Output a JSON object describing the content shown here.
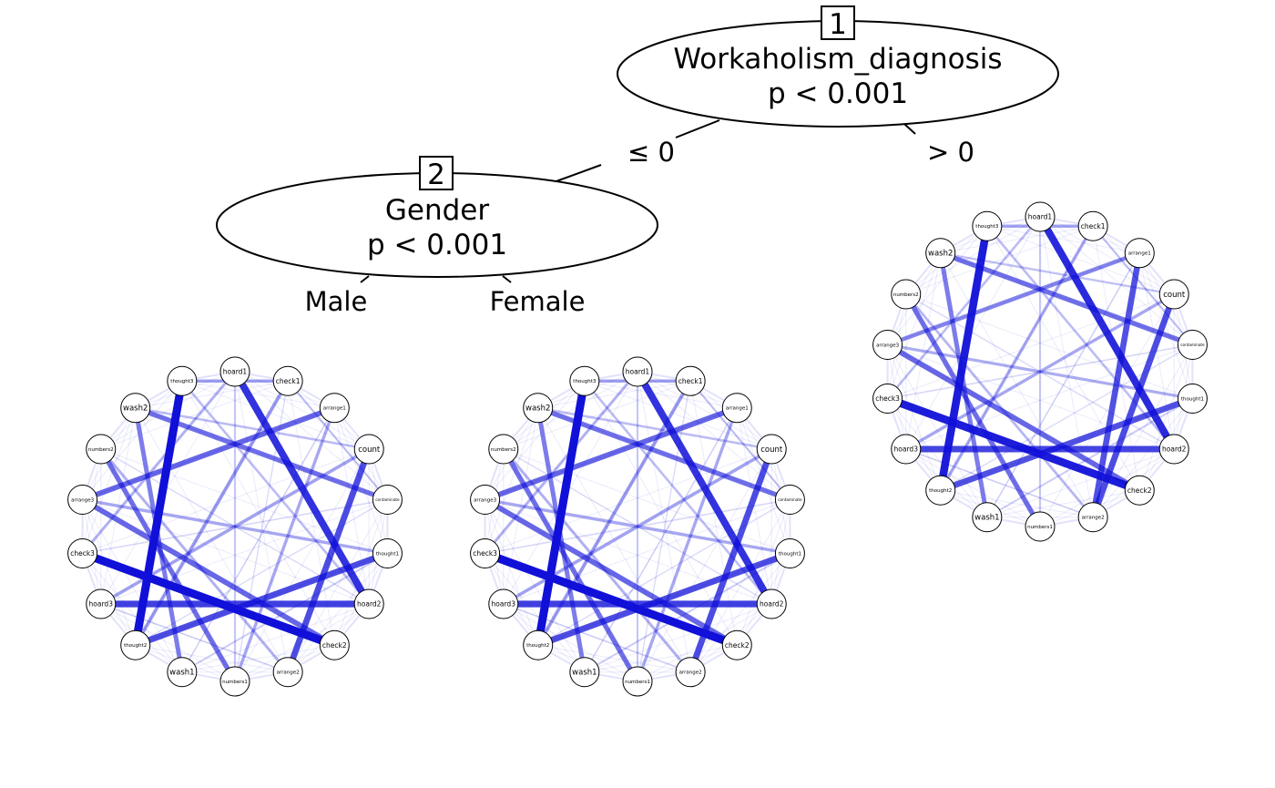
{
  "tree": {
    "nodes": [
      {
        "id": "1",
        "variable": "Workaholism_diagnosis",
        "pvalue": "p < 0.001"
      },
      {
        "id": "2",
        "variable": "Gender",
        "pvalue": "p < 0.001"
      }
    ],
    "edge_labels": {
      "root_left": "≤ 0",
      "root_right": "> 0",
      "gender_left": "Male",
      "gender_right": "Female"
    },
    "line_color": "#000000"
  },
  "networks": {
    "edge_color": "#1010d8",
    "node_fill": "#ffffff",
    "node_order": [
      "hoard1",
      "check1",
      "arrange1",
      "count",
      "contaminate",
      "thought1",
      "hoard2",
      "check2",
      "arrange2",
      "numbers1",
      "wash1",
      "thought2",
      "hoard3",
      "check3",
      "arrange3",
      "numbers2",
      "wash2",
      "thought3"
    ],
    "panels": [
      {
        "name": "Male",
        "edges": [
          [
            "thought3",
            "thought2",
            1.0
          ],
          [
            "check3",
            "check2",
            1.0
          ],
          [
            "hoard1",
            "hoard2",
            0.85
          ],
          [
            "hoard3",
            "hoard2",
            0.78
          ],
          [
            "thought1",
            "thought2",
            0.72
          ],
          [
            "count",
            "arrange2",
            0.72
          ],
          [
            "arrange3",
            "arrange1",
            0.6
          ],
          [
            "wash2",
            "contaminate",
            0.55
          ],
          [
            "numbers2",
            "numbers1",
            0.55
          ],
          [
            "arrange3",
            "check2",
            0.6
          ],
          [
            "wash2",
            "wash1",
            0.5
          ],
          [
            "check1",
            "thought2",
            0.35
          ],
          [
            "thought3",
            "check1",
            0.32
          ],
          [
            "arrange1",
            "numbers1",
            0.3
          ],
          [
            "hoard3",
            "count",
            0.32
          ],
          [
            "arrange3",
            "thought1",
            0.3
          ],
          [
            "check3",
            "hoard1",
            0.25
          ],
          [
            "numbers2",
            "arrange2",
            0.25
          ],
          [
            "wash2",
            "count",
            0.2
          ],
          [
            "thought3",
            "hoard2",
            0.2
          ],
          [
            "hoard1",
            "numbers1",
            0.15
          ],
          [
            "check1",
            "contaminate",
            0.15
          ],
          [
            "wash1",
            "thought1",
            0.12
          ],
          [
            "check3",
            "contaminate",
            0.08
          ],
          [
            "arrange2",
            "hoard3",
            0.08
          ],
          [
            "wash1",
            "arrange1",
            0.06
          ],
          [
            "numbers2",
            "hoard2",
            0.06
          ],
          [
            "thought2",
            "contaminate",
            0.05
          ],
          [
            "check1",
            "numbers1",
            0.05
          ]
        ]
      },
      {
        "name": "Female",
        "edges": [
          [
            "thought3",
            "thought2",
            1.0
          ],
          [
            "check3",
            "check2",
            1.0
          ],
          [
            "hoard1",
            "hoard2",
            0.85
          ],
          [
            "hoard3",
            "hoard2",
            0.78
          ],
          [
            "thought1",
            "thought2",
            0.72
          ],
          [
            "count",
            "arrange2",
            0.72
          ],
          [
            "arrange3",
            "arrange1",
            0.6
          ],
          [
            "wash2",
            "contaminate",
            0.55
          ],
          [
            "numbers2",
            "numbers1",
            0.55
          ],
          [
            "arrange3",
            "check2",
            0.6
          ],
          [
            "wash2",
            "wash1",
            0.5
          ],
          [
            "check1",
            "thought2",
            0.35
          ],
          [
            "thought3",
            "check1",
            0.32
          ],
          [
            "arrange1",
            "numbers1",
            0.3
          ],
          [
            "hoard3",
            "count",
            0.32
          ],
          [
            "arrange3",
            "thought1",
            0.3
          ],
          [
            "check3",
            "hoard1",
            0.25
          ],
          [
            "numbers2",
            "arrange2",
            0.25
          ],
          [
            "wash2",
            "count",
            0.2
          ],
          [
            "thought3",
            "hoard2",
            0.2
          ],
          [
            "hoard1",
            "numbers1",
            0.15
          ],
          [
            "check1",
            "contaminate",
            0.15
          ],
          [
            "wash1",
            "thought1",
            0.12
          ],
          [
            "check3",
            "contaminate",
            0.08
          ],
          [
            "arrange2",
            "hoard3",
            0.08
          ],
          [
            "wash1",
            "arrange1",
            0.06
          ],
          [
            "numbers2",
            "hoard2",
            0.06
          ],
          [
            "thought2",
            "contaminate",
            0.05
          ],
          [
            "check1",
            "numbers1",
            0.05
          ]
        ]
      },
      {
        "name": "> 0",
        "edges": [
          [
            "thought3",
            "thought2",
            0.95
          ],
          [
            "check3",
            "check2",
            0.95
          ],
          [
            "hoard1",
            "hoard2",
            0.88
          ],
          [
            "hoard3",
            "hoard2",
            0.75
          ],
          [
            "thought1",
            "thought2",
            0.7
          ],
          [
            "count",
            "arrange2",
            0.72
          ],
          [
            "arrange1",
            "arrange2",
            0.7
          ],
          [
            "arrange3",
            "arrange1",
            0.45
          ],
          [
            "wash2",
            "contaminate",
            0.55
          ],
          [
            "numbers2",
            "numbers1",
            0.55
          ],
          [
            "arrange3",
            "check2",
            0.6
          ],
          [
            "wash2",
            "wash1",
            0.5
          ],
          [
            "check1",
            "thought2",
            0.3
          ],
          [
            "thought3",
            "check1",
            0.3
          ],
          [
            "hoard3",
            "count",
            0.3
          ],
          [
            "arrange3",
            "thought1",
            0.28
          ],
          [
            "check3",
            "hoard1",
            0.2
          ],
          [
            "numbers2",
            "arrange2",
            0.22
          ],
          [
            "wash2",
            "count",
            0.18
          ],
          [
            "thought3",
            "hoard2",
            0.2
          ],
          [
            "hoard1",
            "numbers1",
            0.15
          ],
          [
            "check1",
            "contaminate",
            0.15
          ],
          [
            "wash1",
            "thought1",
            0.12
          ],
          [
            "check3",
            "contaminate",
            0.08
          ],
          [
            "arrange2",
            "hoard3",
            0.08
          ],
          [
            "wash1",
            "arrange1",
            0.06
          ],
          [
            "numbers2",
            "hoard2",
            0.06
          ],
          [
            "thought2",
            "contaminate",
            0.05
          ]
        ]
      }
    ]
  }
}
